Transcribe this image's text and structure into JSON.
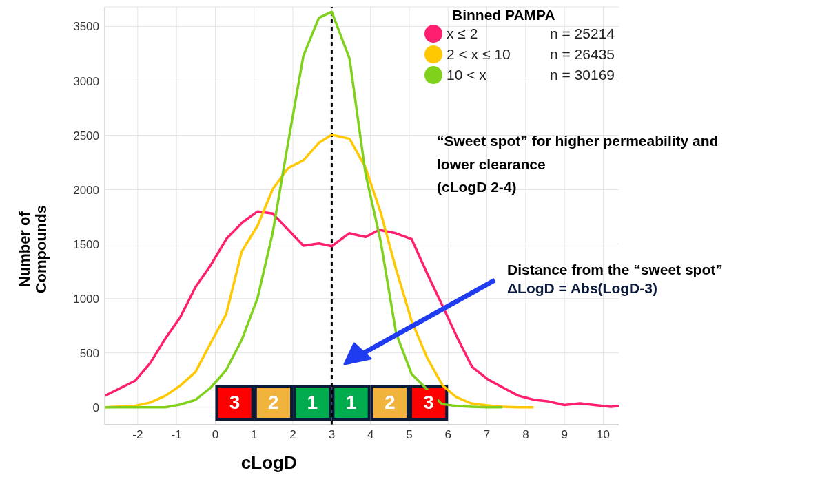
{
  "chart_data": {
    "type": "line",
    "xlabel": "cLogD",
    "ylabel": "Number of Compounds",
    "legend_title": "Binned PAMPA",
    "xlim": [
      -2.85,
      10.4
    ],
    "xticks": [
      -2,
      -1,
      0,
      1,
      2,
      3,
      4,
      5,
      6,
      7,
      8,
      9,
      10
    ],
    "ylim": [
      -160,
      3680
    ],
    "yticks": [
      0,
      500,
      1000,
      1500,
      2000,
      2500,
      3000,
      3500
    ],
    "grid": true,
    "legend": "top right",
    "marker": "none",
    "line_style": "solid",
    "series": [
      {
        "name": "x ≤ 2",
        "color": "#ff1f6e",
        "x": [
          -2.85,
          -2.07,
          -1.68,
          -1.29,
          -0.9,
          -0.51,
          -0.12,
          0.3,
          0.7,
          1.09,
          1.48,
          1.87,
          2.27,
          2.67,
          3.0,
          3.45,
          3.87,
          4.22,
          4.65,
          5.06,
          5.46,
          5.86,
          6.25,
          6.62,
          7.03,
          7.42,
          7.8,
          8.2,
          8.6,
          9.0,
          9.4,
          9.86,
          10.2,
          10.4
        ],
        "values": [
          105,
          243,
          405,
          630,
          830,
          1105,
          1305,
          1555,
          1700,
          1800,
          1780,
          1635,
          1485,
          1505,
          1480,
          1600,
          1565,
          1630,
          1600,
          1545,
          1230,
          930,
          630,
          370,
          255,
          180,
          108,
          70,
          53,
          20,
          36,
          17,
          5,
          12
        ]
      },
      {
        "name": "2 < x ≤ 10",
        "color": "#ffc800",
        "x": [
          -2.85,
          -2.07,
          -1.68,
          -1.29,
          -0.9,
          -0.51,
          -0.12,
          0.28,
          0.68,
          1.09,
          1.48,
          1.88,
          2.27,
          2.67,
          3.0,
          3.46,
          3.87,
          4.26,
          4.66,
          5.06,
          5.46,
          5.86,
          6.2,
          6.59,
          7.0,
          7.4,
          7.78,
          8.2
        ],
        "values": [
          0,
          13,
          43,
          105,
          200,
          325,
          590,
          855,
          1430,
          1670,
          2005,
          2200,
          2270,
          2430,
          2505,
          2468,
          2205,
          1793,
          1268,
          793,
          455,
          200,
          96,
          36,
          17,
          5,
          0,
          0
        ]
      },
      {
        "name": "10 < x",
        "color": "#7fd11b",
        "x": [
          -2.85,
          -2.07,
          -1.68,
          -1.29,
          -0.9,
          -0.51,
          -0.12,
          0.28,
          0.68,
          1.09,
          1.48,
          1.88,
          2.27,
          2.67,
          3.0,
          3.46,
          3.87,
          4.26,
          4.66,
          5.06,
          5.46,
          5.84,
          6.2,
          6.6,
          7.0,
          7.4
        ],
        "values": [
          0,
          0,
          0,
          0,
          25,
          68,
          180,
          343,
          618,
          1005,
          1605,
          2440,
          3230,
          3580,
          3635,
          3205,
          2150,
          1530,
          680,
          305,
          null,
          29,
          12,
          5,
          0,
          0
        ]
      }
    ],
    "ref_lines": [
      {
        "axis": "x",
        "value": 3,
        "color": "#000000",
        "line_style": "dashed"
      }
    ],
    "bands": [
      {
        "axis": "x",
        "from": 0,
        "to": 1,
        "label": "3",
        "color": "#ff0000"
      },
      {
        "axis": "x",
        "from": 1,
        "to": 2,
        "label": "2",
        "color": "#f0b43c"
      },
      {
        "axis": "x",
        "from": 2,
        "to": 3,
        "label": "1",
        "color": "#00ac4e"
      },
      {
        "axis": "x",
        "from": 3,
        "to": 4,
        "label": "1",
        "color": "#00ac4e"
      },
      {
        "axis": "x",
        "from": 4,
        "to": 5,
        "label": "2",
        "color": "#f0b43c"
      },
      {
        "axis": "x",
        "from": 5,
        "to": 6,
        "label": "3",
        "color": "#ff0000"
      }
    ],
    "annotations": [
      "n = 25214",
      "n = 26435",
      "n = 30169",
      "“Sweet spot” for higher permeability and\nlower clearance\n(cLogD 2-4)",
      "Distance from the “sweet spot”\nΔLogD = Abs(LogD-3)"
    ]
  }
}
